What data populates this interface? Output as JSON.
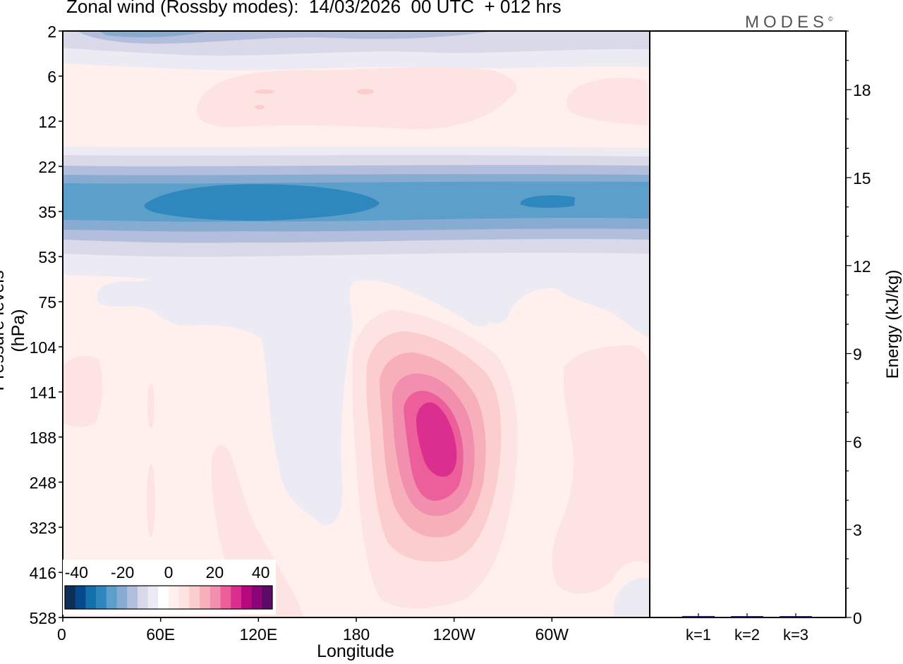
{
  "title": "Zonal wind (Rossby modes):  14/03/2026  00 UTC  + 012 hrs",
  "logo": "MODES",
  "logo_mark": "©",
  "palette": {
    "blues": [
      "#0b2f57",
      "#06498c",
      "#1470ad",
      "#2e88bd",
      "#5c9fcb",
      "#88abd2",
      "#b3bedd",
      "#dad9ea",
      "#ecebf4"
    ],
    "neutral": "#ffffff",
    "pinks": [
      "#fff0ee",
      "#fde3e1",
      "#fbcdcc",
      "#f7b0b9",
      "#f28fae",
      "#ec5f9a",
      "#db2f8f",
      "#b9077d",
      "#8c0578",
      "#5b0a68"
    ],
    "surround": "#f4f2fa"
  },
  "chart_data": [
    {
      "type": "contour",
      "title": "Zonal wind (Rossby modes):  14/03/2026  00 UTC  + 012 hrs",
      "xlabel": "Longitude",
      "ylabel": "Pressure levels (hPa)",
      "x_ticks": [
        "0",
        "60E",
        "120E",
        "180",
        "120W",
        "60W"
      ],
      "x_tick_degrees": [
        0,
        60,
        120,
        180,
        240,
        300
      ],
      "x_range_degrees": [
        0,
        360
      ],
      "y_ticks": [
        "2",
        "6",
        "12",
        "22",
        "35",
        "53",
        "75",
        "104",
        "141",
        "188",
        "248",
        "323",
        "416",
        "528"
      ],
      "y_scale": "level index (top = 2 hPa)",
      "colorbar": {
        "labels": [
          "-40",
          "-20",
          "0",
          "20",
          "40"
        ],
        "min": -45,
        "max": 45,
        "step": 5,
        "placement": "bottom-left inside plot"
      },
      "features": [
        {
          "desc": "easterly band near 2 hPa",
          "level_hpa": 2,
          "min_value": -15
        },
        {
          "desc": "weak westerly layer 6-12 hPa",
          "lon_range": [
            90,
            350
          ],
          "max_value": 8
        },
        {
          "desc": "easterly jet core 22-53 hPa",
          "lon_center": 120,
          "level_hpa": 35,
          "min_value": -28
        },
        {
          "desc": "secondary easterly core",
          "lon_center": 290,
          "level_hpa": 35,
          "min_value": -26
        },
        {
          "desc": "westerly jet maximum",
          "lon_center": 230,
          "level_hpa": 188,
          "max_value": 27
        },
        {
          "desc": "weak westerlies over western hemisphere lower levels",
          "lon_center": 330,
          "level_hpa": 248,
          "max_value": 8
        }
      ]
    },
    {
      "type": "bar",
      "title": "",
      "ylabel": "Energy (kJ/kg)",
      "categories": [
        "k=1",
        "k=2",
        "k=3"
      ],
      "values": [
        0.05,
        0.03,
        0.02
      ],
      "ylim": [
        0,
        20
      ],
      "y_ticks": [
        0,
        3,
        6,
        9,
        12,
        15,
        18
      ],
      "bar_color": "#1c1c60"
    }
  ]
}
